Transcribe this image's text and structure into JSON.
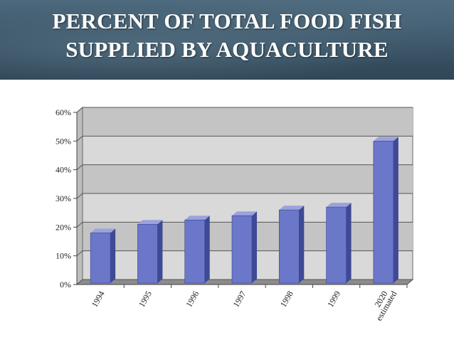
{
  "slide": {
    "title_line1": "PERCENT OF TOTAL FOOD FISH",
    "title_line2": "SUPPLIED BY AQUACULTURE"
  },
  "chart_data": {
    "type": "bar",
    "categories": [
      "1994",
      "1995",
      "1996",
      "1997",
      "1998",
      "1999",
      "2020 estimated"
    ],
    "category_labels": [
      [
        "1994"
      ],
      [
        "1995"
      ],
      [
        "1996"
      ],
      [
        "1997"
      ],
      [
        "1998"
      ],
      [
        "1999"
      ],
      [
        "2020",
        "estimated"
      ]
    ],
    "values": [
      18,
      21,
      22.5,
      24,
      26,
      27,
      50
    ],
    "ylim": [
      0,
      60
    ],
    "yticks": [
      0,
      10,
      20,
      30,
      40,
      50,
      60
    ],
    "ytick_labels": [
      "0%",
      "10%",
      "20%",
      "30%",
      "40%",
      "50%",
      "60%"
    ],
    "title": "",
    "xlabel": "",
    "ylabel": "",
    "grid": true,
    "colors": {
      "bar_front": "#6b77c8",
      "bar_side": "#3f4a96",
      "bar_top": "#9aa3dc",
      "wall": "#d9d9d9",
      "floor": "#8c8c8c"
    }
  }
}
